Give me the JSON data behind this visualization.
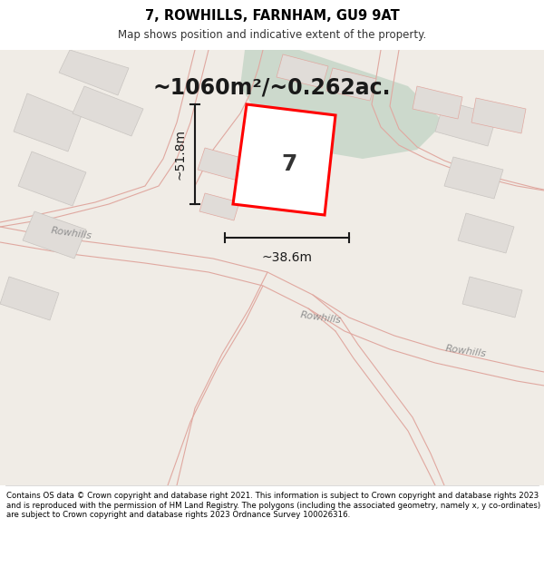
{
  "title": "7, ROWHILLS, FARNHAM, GU9 9AT",
  "subtitle": "Map shows position and indicative extent of the property.",
  "area_text": "~1060m²/~0.262ac.",
  "dim_width": "~38.6m",
  "dim_height": "~51.8m",
  "property_number": "7",
  "footer": "Contains OS data © Crown copyright and database right 2021. This information is subject to Crown copyright and database rights 2023 and is reproduced with the permission of HM Land Registry. The polygons (including the associated geometry, namely x, y co-ordinates) are subject to Crown copyright and database rights 2023 Ordnance Survey 100026316.",
  "bg_color": "#f0ece6",
  "map_bg": "#f0ece6",
  "road_fill": "#f0ece6",
  "green_color": "#ccd9cc",
  "building_fill": "#e0dcd8",
  "building_stroke": "#c8c4c0",
  "property_fill": "#ffffff",
  "property_stroke": "#ff0000",
  "road_line_color": "#e0a8a0",
  "road_label_color": "#909090",
  "title_color": "#000000",
  "footer_color": "#000000",
  "dim_color": "#1a1a1a"
}
